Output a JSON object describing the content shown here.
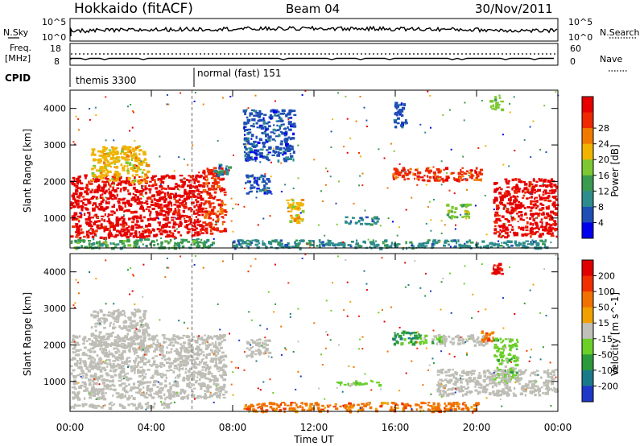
{
  "header": {
    "station": "Hokkaido (fitACF)",
    "beam": "Beam 04",
    "date": "30/Nov/2011"
  },
  "summary": {
    "nsky_label": "N.Sky",
    "nsky_ticks": [
      "10^5",
      "10^0"
    ],
    "nsearch_label": "N.Search",
    "nsearch_ticks": [
      "10^5",
      "10^0"
    ],
    "freq_label_1": "Freq.",
    "freq_label_2": "[MHz]",
    "freq_ticks": [
      "18",
      "8"
    ],
    "nave_label": "Nave",
    "nave_ticks": [
      "60",
      "0"
    ],
    "cpid_label": "CPID",
    "cpid_segments": [
      {
        "label": "themis 3300",
        "start_h": 0,
        "end_h": 6
      },
      {
        "label": "normal (fast) 151",
        "start_h": 6,
        "end_h": 24
      }
    ]
  },
  "colors": {
    "power": [
      "#0000ee",
      "#1f4fb4",
      "#2e8c8c",
      "#3a9a50",
      "#7dc832",
      "#f0b400",
      "#f07a00",
      "#ee2800",
      "#e60000"
    ],
    "velocity": [
      "#2038c8",
      "#1a7a8a",
      "#2a9a3a",
      "#6ad028",
      "#c0c0b8",
      "#f0a000",
      "#f07000",
      "#f03000",
      "#e00000"
    ],
    "ground_scatter": "#bebeb6"
  },
  "chart_data": [
    {
      "type": "heatmap",
      "title": "Power",
      "ylabel": "Slant Range [km]",
      "xlabel": "",
      "xlim": [
        0,
        24
      ],
      "ylim": [
        180,
        4500
      ],
      "x_ticks": [
        "00:00",
        "04:00",
        "08:00",
        "12:00",
        "16:00",
        "20:00",
        "00:00"
      ],
      "y_ticks": [
        1000,
        2000,
        3000,
        4000
      ],
      "colorbar_label": "Power [dB]",
      "colorbar_ticks": [
        4,
        8,
        12,
        16,
        20,
        24,
        28
      ],
      "regions": [
        {
          "t0": 0.0,
          "t1": 6.5,
          "r0": 480,
          "r1": 2200,
          "level": 8
        },
        {
          "t0": 6.5,
          "t1": 7.6,
          "r0": 600,
          "r1": 2400,
          "level": 7
        },
        {
          "t0": 0.0,
          "t1": 7.0,
          "r0": 200,
          "r1": 450,
          "level": 3
        },
        {
          "t0": 1.0,
          "t1": 3.8,
          "r0": 2000,
          "r1": 3000,
          "level": 5
        },
        {
          "t0": 7.0,
          "t1": 7.8,
          "r0": 2200,
          "r1": 2500,
          "level": 2
        },
        {
          "t0": 8.6,
          "t1": 9.8,
          "r0": 1700,
          "r1": 2200,
          "level": 1
        },
        {
          "t0": 10.6,
          "t1": 11.4,
          "r0": 900,
          "r1": 1600,
          "level": 5
        },
        {
          "t0": 13.5,
          "t1": 15.2,
          "r0": 850,
          "r1": 1050,
          "level": 2
        },
        {
          "t0": 15.8,
          "t1": 20.2,
          "r0": 2050,
          "r1": 2400,
          "level": 7
        },
        {
          "t0": 18.5,
          "t1": 19.6,
          "r0": 1000,
          "r1": 1400,
          "level": 4
        },
        {
          "t0": 20.8,
          "t1": 23.9,
          "r0": 500,
          "r1": 2100,
          "level": 8
        },
        {
          "t0": 8.0,
          "t1": 23.5,
          "r0": 200,
          "r1": 420,
          "level": 2
        },
        {
          "t0": 8.5,
          "t1": 11.0,
          "r0": 2600,
          "r1": 4000,
          "level": 1
        },
        {
          "t0": 15.9,
          "t1": 16.5,
          "r0": 3500,
          "r1": 4200,
          "level": 1
        },
        {
          "t0": 20.6,
          "t1": 21.2,
          "r0": 3900,
          "r1": 4400,
          "level": 4
        }
      ]
    },
    {
      "type": "heatmap",
      "title": "Velocity",
      "ylabel": "Slant Range [km]",
      "xlabel": "Time UT",
      "xlim": [
        0,
        24
      ],
      "ylim": [
        180,
        4500
      ],
      "x_ticks": [
        "00:00",
        "04:00",
        "08:00",
        "12:00",
        "16:00",
        "20:00",
        "00:00"
      ],
      "y_ticks": [
        1000,
        2000,
        3000,
        4000
      ],
      "colorbar_label": "Velocity [m s^-1]",
      "colorbar_ticks": [
        200,
        100,
        50,
        15,
        -15,
        -50,
        -100,
        -200
      ],
      "regions": [
        {
          "t0": 0.0,
          "t1": 7.6,
          "r0": 550,
          "r1": 2300,
          "level": "gs"
        },
        {
          "t0": 1.0,
          "t1": 3.8,
          "r0": 2000,
          "r1": 3000,
          "level": "gs"
        },
        {
          "t0": 0.0,
          "t1": 5.0,
          "r0": 300,
          "r1": 450,
          "level": "gs"
        },
        {
          "t0": 8.6,
          "t1": 9.8,
          "r0": 1700,
          "r1": 2200,
          "level": "gs"
        },
        {
          "t0": 15.8,
          "t1": 17.2,
          "r0": 2050,
          "r1": 2400,
          "level": 2
        },
        {
          "t0": 17.2,
          "t1": 18.3,
          "r0": 2050,
          "r1": 2300,
          "level": 3
        },
        {
          "t0": 18.3,
          "t1": 20.5,
          "r0": 2000,
          "r1": 2300,
          "level": "gs"
        },
        {
          "t0": 20.2,
          "t1": 20.8,
          "r0": 2100,
          "r1": 2400,
          "level": 6
        },
        {
          "t0": 20.8,
          "t1": 22.0,
          "r0": 1000,
          "r1": 2200,
          "level": 3
        },
        {
          "t0": 18.0,
          "t1": 23.9,
          "r0": 650,
          "r1": 1350,
          "level": "gs"
        },
        {
          "t0": 8.5,
          "t1": 20.0,
          "r0": 200,
          "r1": 450,
          "level": 6
        },
        {
          "t0": 13.0,
          "t1": 15.2,
          "r0": 900,
          "r1": 1050,
          "level": 3
        },
        {
          "t0": 20.7,
          "t1": 21.2,
          "r0": 3950,
          "r1": 4300,
          "level": 8
        }
      ]
    }
  ]
}
